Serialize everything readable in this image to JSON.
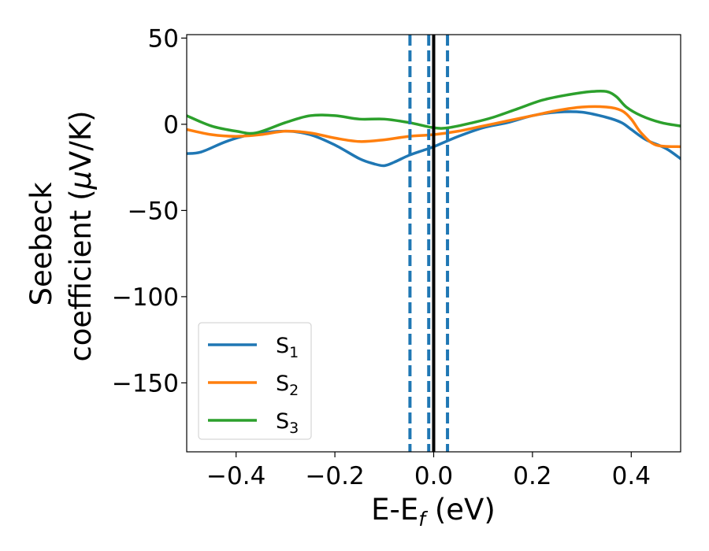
{
  "chart_data": {
    "type": "line",
    "title": "",
    "xlabel": "E-E_f (eV)",
    "ylabel": "Seebeck coefficient (μV/K)",
    "xlim": [
      -0.5,
      0.5
    ],
    "ylim": [
      -190,
      52
    ],
    "xticks": [
      -0.4,
      -0.2,
      0.0,
      0.2,
      0.4
    ],
    "xtick_labels": [
      "−0.4",
      "−0.2",
      "0.0",
      "0.2",
      "0.4"
    ],
    "yticks": [
      50,
      0,
      -50,
      -100,
      -150
    ],
    "ytick_labels": [
      "50",
      "0",
      "−50",
      "−100",
      "−150"
    ],
    "legend_position": "lower-left",
    "grid": false,
    "vlines": [
      {
        "x": 0.0,
        "style": "solid",
        "color": "#000000"
      },
      {
        "x": -0.048,
        "style": "dashed",
        "color": "#1f77b4"
      },
      {
        "x": -0.01,
        "style": "dashed",
        "color": "#1f77b4"
      },
      {
        "x": 0.028,
        "style": "dashed",
        "color": "#1f77b4"
      }
    ],
    "series": [
      {
        "name": "S1",
        "color": "#1f77b4",
        "x": [
          -0.5,
          -0.47,
          -0.42,
          -0.37,
          -0.3,
          -0.25,
          -0.2,
          -0.15,
          -0.12,
          -0.1,
          -0.08,
          -0.05,
          -0.02,
          0.0,
          0.05,
          0.1,
          0.15,
          0.2,
          0.25,
          0.3,
          0.35,
          0.38,
          0.4,
          0.43,
          0.47,
          0.5
        ],
        "y": [
          -17,
          -16,
          -10,
          -6,
          -4,
          -6,
          -12,
          -20,
          -23,
          -24,
          -22,
          -18,
          -15,
          -13,
          -7,
          -2,
          1,
          5,
          7,
          7,
          4,
          1,
          -3,
          -9,
          -14,
          -20
        ]
      },
      {
        "name": "S2",
        "color": "#ff7f0e",
        "x": [
          -0.5,
          -0.45,
          -0.4,
          -0.35,
          -0.3,
          -0.25,
          -0.2,
          -0.15,
          -0.1,
          -0.05,
          0.0,
          0.05,
          0.1,
          0.15,
          0.2,
          0.25,
          0.3,
          0.35,
          0.38,
          0.4,
          0.42,
          0.45,
          0.5
        ],
        "y": [
          -3,
          -6,
          -7,
          -6,
          -4,
          -5,
          -8,
          -10,
          -9,
          -7,
          -6,
          -4,
          -1,
          2,
          5,
          8,
          10,
          10,
          8,
          3,
          -5,
          -12,
          -13
        ]
      },
      {
        "name": "S3",
        "color": "#2ca02c",
        "x": [
          -0.5,
          -0.45,
          -0.4,
          -0.36,
          -0.3,
          -0.25,
          -0.2,
          -0.15,
          -0.1,
          -0.05,
          0.0,
          0.03,
          0.08,
          0.12,
          0.17,
          0.22,
          0.27,
          0.32,
          0.35,
          0.37,
          0.39,
          0.42,
          0.46,
          0.5
        ],
        "y": [
          5,
          -1,
          -4,
          -5,
          1,
          5,
          5,
          3,
          3,
          1,
          -2,
          -2,
          1,
          4,
          9,
          14,
          17,
          19,
          19,
          16,
          10,
          5,
          1,
          -1
        ]
      }
    ]
  }
}
